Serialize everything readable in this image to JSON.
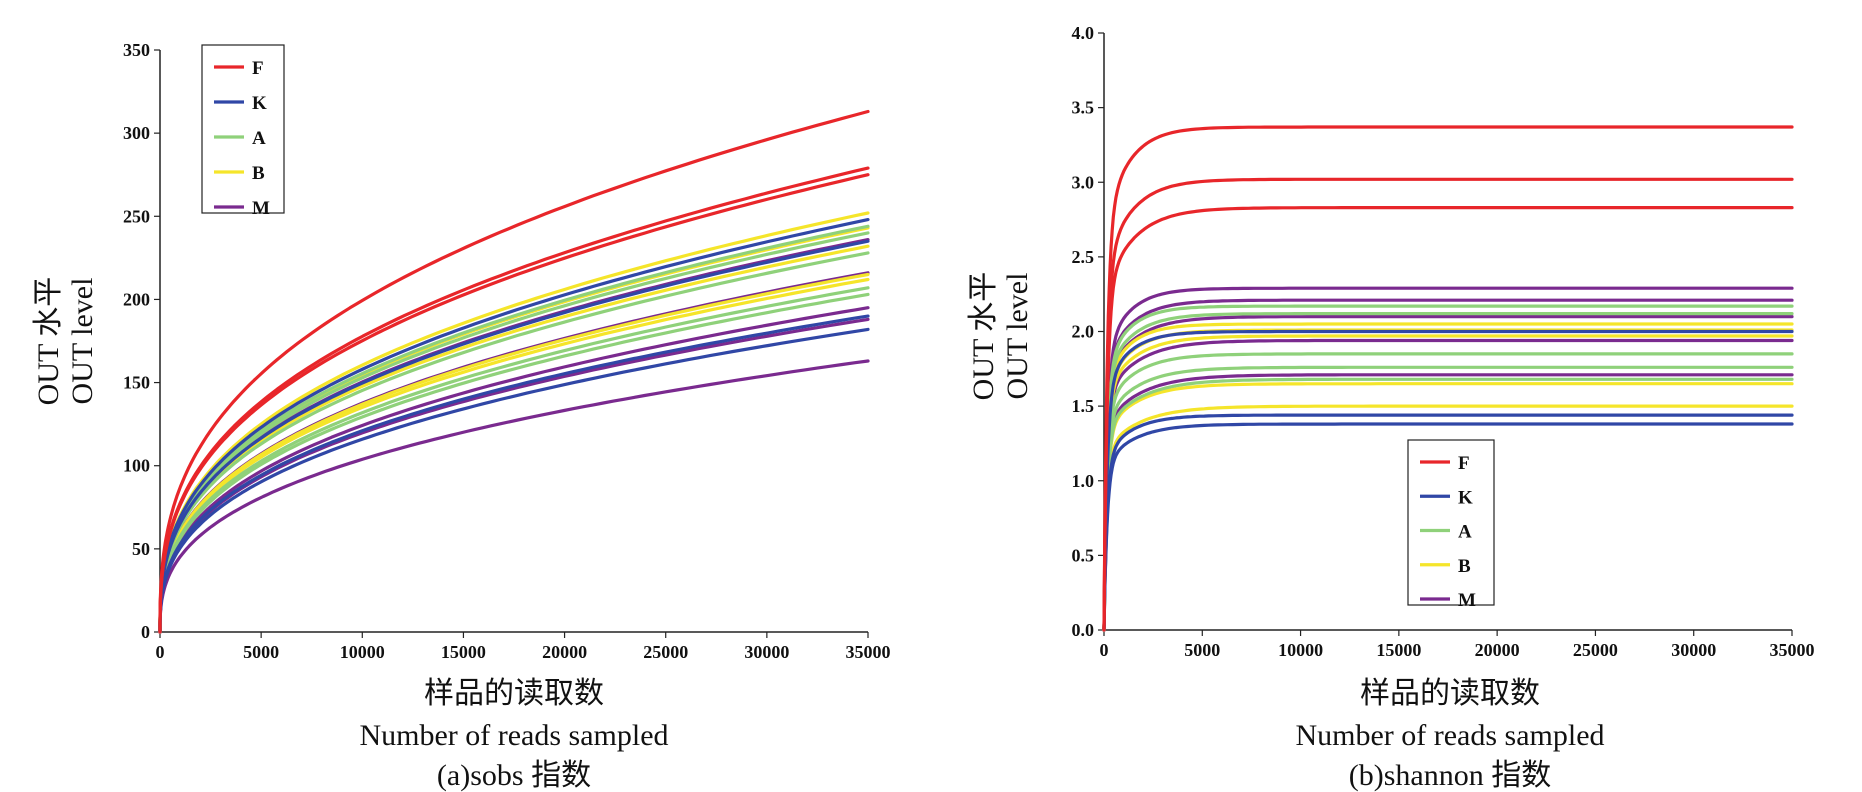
{
  "chart_data": [
    {
      "id": "a",
      "type": "line",
      "caption": "(a)sobs 指数",
      "xlabel_cn": "样品的读取数",
      "xlabel_en": "Number of reads sampled",
      "ylabel_cn": "OUT 水平",
      "ylabel_en": "OUT level",
      "xlim": [
        0,
        35000
      ],
      "ylim": [
        0,
        350
      ],
      "xticks": [
        0,
        5000,
        10000,
        15000,
        20000,
        25000,
        30000,
        35000
      ],
      "yticks": [
        0,
        50,
        100,
        150,
        200,
        250,
        300,
        350
      ],
      "grid": false,
      "legend_position": "top-left",
      "legend": [
        {
          "name": "F",
          "color": "#e8262a"
        },
        {
          "name": "K",
          "color": "#3047a6"
        },
        {
          "name": "A",
          "color": "#8fd17a"
        },
        {
          "name": "B",
          "color": "#f5e52a"
        },
        {
          "name": "M",
          "color": "#7a2a8f"
        }
      ],
      "series": [
        {
          "name": "F",
          "color": "#e8262a",
          "end_values": [
            313,
            279,
            275
          ]
        },
        {
          "name": "K",
          "color": "#3047a6",
          "end_values": [
            248,
            235,
            190,
            182
          ]
        },
        {
          "name": "A",
          "color": "#8fd17a",
          "end_values": [
            244,
            240,
            228,
            207,
            203
          ]
        },
        {
          "name": "B",
          "color": "#f5e52a",
          "end_values": [
            252,
            243,
            232,
            215,
            212
          ]
        },
        {
          "name": "M",
          "color": "#7a2a8f",
          "end_values": [
            236,
            216,
            195,
            188,
            163
          ]
        }
      ]
    },
    {
      "id": "b",
      "type": "line",
      "caption": "(b)shannon 指数",
      "xlabel_cn": "样品的读取数",
      "xlabel_en": "Number of reads sampled",
      "ylabel_cn": "OUT 水平",
      "ylabel_en": "OUT level",
      "xlim": [
        0,
        35000
      ],
      "ylim": [
        0,
        4.0
      ],
      "xticks": [
        0,
        5000,
        10000,
        15000,
        20000,
        25000,
        30000,
        35000
      ],
      "yticks": [
        "0.0",
        "0.5",
        "1.0",
        "1.5",
        "2.0",
        "2.5",
        "3.0",
        "3.5",
        "4.0"
      ],
      "grid": false,
      "legend_position": "bottom-center",
      "legend": [
        {
          "name": "F",
          "color": "#e8262a"
        },
        {
          "name": "K",
          "color": "#3047a6"
        },
        {
          "name": "A",
          "color": "#8fd17a"
        },
        {
          "name": "B",
          "color": "#f5e52a"
        },
        {
          "name": "M",
          "color": "#7a2a8f"
        }
      ],
      "series": [
        {
          "name": "F",
          "color": "#e8262a",
          "end_values": [
            3.37,
            3.02,
            2.83
          ]
        },
        {
          "name": "K",
          "color": "#3047a6",
          "end_values": [
            2.0,
            1.44,
            1.38
          ]
        },
        {
          "name": "A",
          "color": "#8fd17a",
          "end_values": [
            2.17,
            2.12,
            1.85,
            1.76,
            1.68
          ]
        },
        {
          "name": "B",
          "color": "#f5e52a",
          "end_values": [
            2.05,
            2.01,
            1.97,
            1.65,
            1.5
          ]
        },
        {
          "name": "M",
          "color": "#7a2a8f",
          "end_values": [
            2.29,
            2.21,
            2.1,
            1.94,
            1.71
          ]
        }
      ]
    }
  ]
}
